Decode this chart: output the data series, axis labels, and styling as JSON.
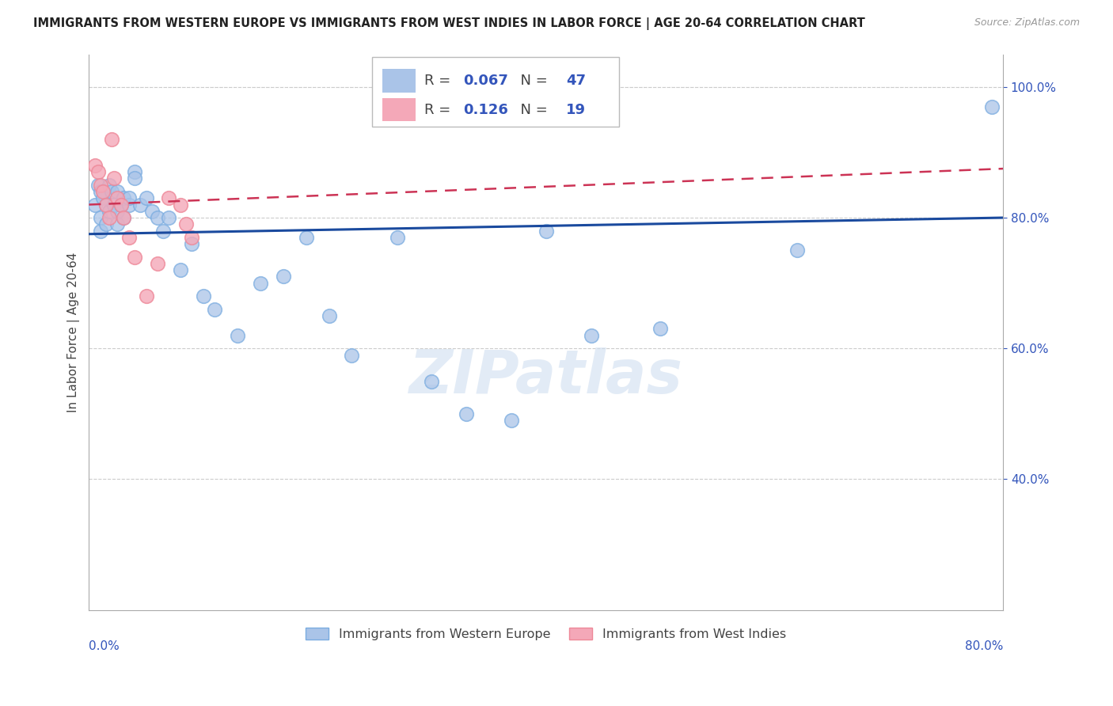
{
  "title": "IMMIGRANTS FROM WESTERN EUROPE VS IMMIGRANTS FROM WEST INDIES IN LABOR FORCE | AGE 20-64 CORRELATION CHART",
  "source": "Source: ZipAtlas.com",
  "ylabel": "In Labor Force | Age 20-64",
  "xlim": [
    0.0,
    0.8
  ],
  "ylim": [
    0.2,
    1.05
  ],
  "yticks": [
    0.4,
    0.6,
    0.8,
    1.0
  ],
  "ytick_labels": [
    "40.0%",
    "60.0%",
    "80.0%",
    "100.0%"
  ],
  "grid_color": "#cccccc",
  "background_color": "#ffffff",
  "blue_R": "0.067",
  "blue_N": "47",
  "pink_R": "0.126",
  "pink_N": "19",
  "blue_color": "#aac4e8",
  "pink_color": "#f4a8b8",
  "blue_edge_color": "#7aace0",
  "pink_edge_color": "#ee8898",
  "blue_line_color": "#1a4a9e",
  "pink_line_color": "#cc3355",
  "accent_color": "#3355bb",
  "watermark_color": "#d0dff0",
  "watermark": "ZIPatlas",
  "legend_blue": "Immigrants from Western Europe",
  "legend_pink": "Immigrants from West Indies",
  "blue_scatter_x": [
    0.005,
    0.008,
    0.01,
    0.01,
    0.01,
    0.012,
    0.015,
    0.015,
    0.018,
    0.018,
    0.02,
    0.022,
    0.025,
    0.025,
    0.025,
    0.028,
    0.03,
    0.03,
    0.035,
    0.035,
    0.04,
    0.04,
    0.045,
    0.05,
    0.055,
    0.06,
    0.065,
    0.07,
    0.08,
    0.09,
    0.1,
    0.11,
    0.13,
    0.15,
    0.17,
    0.19,
    0.21,
    0.23,
    0.27,
    0.3,
    0.33,
    0.37,
    0.4,
    0.44,
    0.5,
    0.62,
    0.79
  ],
  "blue_scatter_y": [
    0.82,
    0.85,
    0.84,
    0.8,
    0.78,
    0.83,
    0.82,
    0.79,
    0.85,
    0.81,
    0.84,
    0.82,
    0.81,
    0.84,
    0.79,
    0.82,
    0.8,
    0.83,
    0.82,
    0.83,
    0.87,
    0.86,
    0.82,
    0.83,
    0.81,
    0.8,
    0.78,
    0.8,
    0.72,
    0.76,
    0.68,
    0.66,
    0.62,
    0.7,
    0.71,
    0.77,
    0.65,
    0.59,
    0.77,
    0.55,
    0.5,
    0.49,
    0.78,
    0.62,
    0.63,
    0.75,
    0.97
  ],
  "pink_scatter_x": [
    0.005,
    0.008,
    0.01,
    0.012,
    0.015,
    0.018,
    0.02,
    0.022,
    0.025,
    0.028,
    0.03,
    0.035,
    0.04,
    0.05,
    0.06,
    0.07,
    0.08,
    0.085,
    0.09
  ],
  "pink_scatter_y": [
    0.88,
    0.87,
    0.85,
    0.84,
    0.82,
    0.8,
    0.92,
    0.86,
    0.83,
    0.82,
    0.8,
    0.77,
    0.74,
    0.68,
    0.73,
    0.83,
    0.82,
    0.79,
    0.77
  ],
  "blue_line_x0": 0.0,
  "blue_line_x1": 0.8,
  "blue_line_y0": 0.775,
  "blue_line_y1": 0.8,
  "pink_line_x0": 0.0,
  "pink_line_x1": 0.8,
  "pink_line_y0": 0.82,
  "pink_line_y1": 0.875
}
